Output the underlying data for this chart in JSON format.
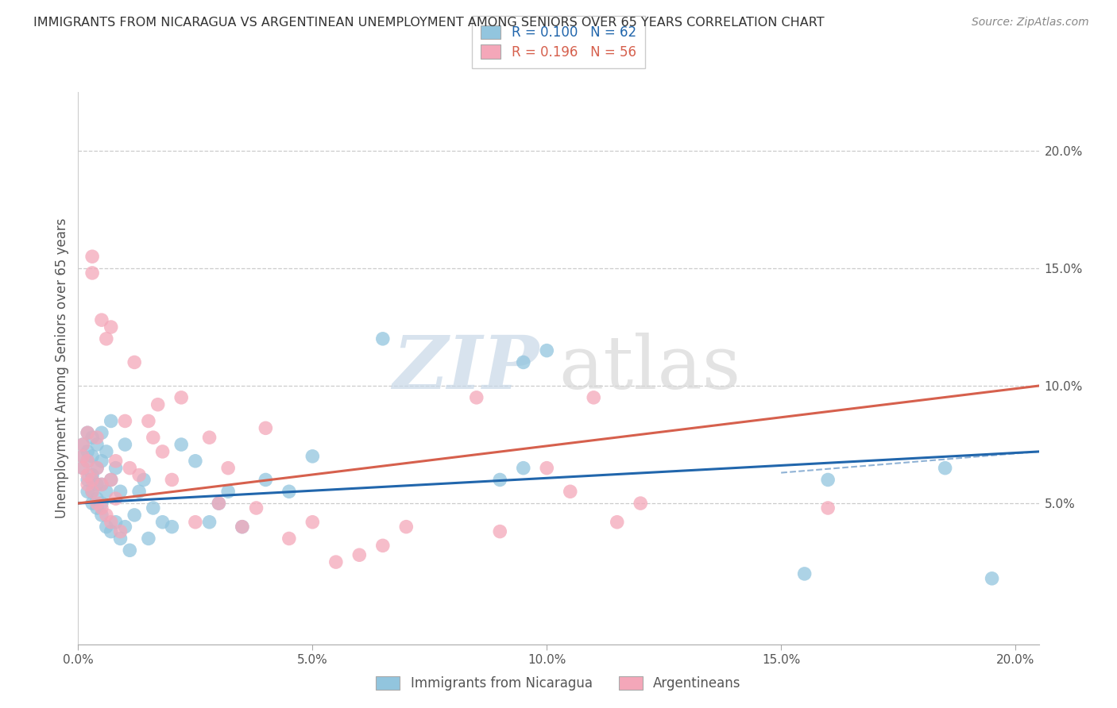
{
  "title": "IMMIGRANTS FROM NICARAGUA VS ARGENTINEAN UNEMPLOYMENT AMONG SENIORS OVER 65 YEARS CORRELATION CHART",
  "source": "Source: ZipAtlas.com",
  "ylabel": "Unemployment Among Seniors over 65 years",
  "xlim": [
    0.0,
    0.205
  ],
  "ylim": [
    -0.01,
    0.225
  ],
  "xticks": [
    0.0,
    0.05,
    0.1,
    0.15,
    0.2
  ],
  "yticks": [
    0.05,
    0.1,
    0.15,
    0.2
  ],
  "xticklabels": [
    "0.0%",
    "5.0%",
    "10.0%",
    "15.0%",
    "20.0%"
  ],
  "yticklabels": [
    "5.0%",
    "10.0%",
    "15.0%",
    "20.0%"
  ],
  "legend_labels": [
    "Immigrants from Nicaragua",
    "Argentineans"
  ],
  "blue_color": "#92c5de",
  "pink_color": "#f4a7b9",
  "blue_line_color": "#2166ac",
  "pink_line_color": "#d6604d",
  "watermark_zip": "ZIP",
  "watermark_atlas": "atlas",
  "R_blue": 0.1,
  "N_blue": 62,
  "R_pink": 0.196,
  "N_pink": 56,
  "blue_scatter_x": [
    0.001,
    0.001,
    0.001,
    0.002,
    0.002,
    0.002,
    0.002,
    0.002,
    0.003,
    0.003,
    0.003,
    0.003,
    0.003,
    0.003,
    0.004,
    0.004,
    0.004,
    0.004,
    0.004,
    0.005,
    0.005,
    0.005,
    0.005,
    0.005,
    0.006,
    0.006,
    0.006,
    0.007,
    0.007,
    0.007,
    0.008,
    0.008,
    0.009,
    0.009,
    0.01,
    0.01,
    0.011,
    0.012,
    0.013,
    0.014,
    0.015,
    0.016,
    0.018,
    0.02,
    0.022,
    0.025,
    0.028,
    0.03,
    0.032,
    0.035,
    0.04,
    0.045,
    0.05,
    0.065,
    0.09,
    0.095,
    0.095,
    0.1,
    0.155,
    0.16,
    0.185,
    0.195
  ],
  "blue_scatter_y": [
    0.07,
    0.065,
    0.075,
    0.055,
    0.06,
    0.068,
    0.072,
    0.08,
    0.05,
    0.055,
    0.06,
    0.062,
    0.07,
    0.078,
    0.048,
    0.052,
    0.058,
    0.065,
    0.075,
    0.045,
    0.05,
    0.058,
    0.068,
    0.08,
    0.04,
    0.055,
    0.072,
    0.038,
    0.06,
    0.085,
    0.042,
    0.065,
    0.035,
    0.055,
    0.04,
    0.075,
    0.03,
    0.045,
    0.055,
    0.06,
    0.035,
    0.048,
    0.042,
    0.04,
    0.075,
    0.068,
    0.042,
    0.05,
    0.055,
    0.04,
    0.06,
    0.055,
    0.07,
    0.12,
    0.06,
    0.11,
    0.065,
    0.115,
    0.02,
    0.06,
    0.065,
    0.018
  ],
  "pink_scatter_x": [
    0.001,
    0.001,
    0.001,
    0.002,
    0.002,
    0.002,
    0.002,
    0.003,
    0.003,
    0.003,
    0.003,
    0.004,
    0.004,
    0.004,
    0.005,
    0.005,
    0.005,
    0.006,
    0.006,
    0.007,
    0.007,
    0.007,
    0.008,
    0.008,
    0.009,
    0.01,
    0.011,
    0.012,
    0.013,
    0.015,
    0.016,
    0.017,
    0.018,
    0.02,
    0.022,
    0.025,
    0.028,
    0.03,
    0.032,
    0.035,
    0.038,
    0.04,
    0.045,
    0.05,
    0.055,
    0.06,
    0.065,
    0.07,
    0.085,
    0.09,
    0.1,
    0.105,
    0.11,
    0.115,
    0.12,
    0.16
  ],
  "pink_scatter_y": [
    0.065,
    0.07,
    0.075,
    0.058,
    0.062,
    0.068,
    0.08,
    0.055,
    0.06,
    0.148,
    0.155,
    0.05,
    0.065,
    0.078,
    0.048,
    0.058,
    0.128,
    0.045,
    0.12,
    0.042,
    0.06,
    0.125,
    0.052,
    0.068,
    0.038,
    0.085,
    0.065,
    0.11,
    0.062,
    0.085,
    0.078,
    0.092,
    0.072,
    0.06,
    0.095,
    0.042,
    0.078,
    0.05,
    0.065,
    0.04,
    0.048,
    0.082,
    0.035,
    0.042,
    0.025,
    0.028,
    0.032,
    0.04,
    0.095,
    0.038,
    0.065,
    0.055,
    0.095,
    0.042,
    0.05,
    0.048
  ],
  "grid_color": "#cccccc",
  "background_color": "#ffffff"
}
